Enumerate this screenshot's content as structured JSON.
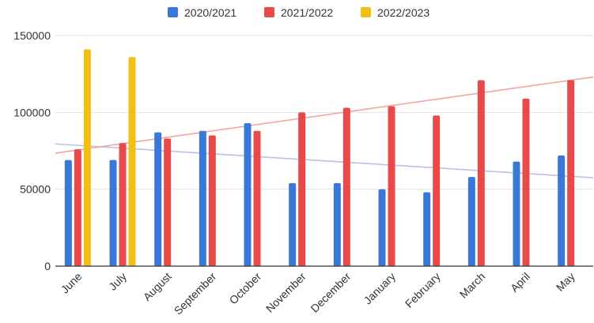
{
  "chart_data": {
    "type": "bar",
    "title": "",
    "xlabel": "",
    "ylabel": "",
    "categories": [
      "June",
      "July",
      "August",
      "September",
      "October",
      "November",
      "December",
      "January",
      "February",
      "March",
      "April",
      "May"
    ],
    "series": [
      {
        "name": "2020/2021",
        "color": "#3a78d8",
        "values": [
          69000,
          69000,
          87000,
          88000,
          93000,
          54000,
          54000,
          50000,
          48000,
          58000,
          68000,
          72000
        ]
      },
      {
        "name": "2021/2022",
        "color": "#e84a4a",
        "values": [
          76000,
          80000,
          83000,
          85000,
          88000,
          100000,
          103000,
          104000,
          98000,
          121000,
          109000,
          121000
        ]
      },
      {
        "name": "2022/2023",
        "color": "#f2c012",
        "values": [
          141000,
          136000,
          null,
          null,
          null,
          null,
          null,
          null,
          null,
          null,
          null,
          null
        ]
      }
    ],
    "trendlines": [
      {
        "series": "2020/2021",
        "color": "#b8c2ea",
        "start": 79500,
        "end": 57500
      },
      {
        "series": "2021/2022",
        "color": "#f0a6a0",
        "start": 73500,
        "end": 123000
      }
    ],
    "yticks": [
      "0",
      "50000",
      "100000",
      "150000"
    ],
    "ylim": [
      0,
      150000
    ],
    "grid": true,
    "legend_position": "top"
  }
}
